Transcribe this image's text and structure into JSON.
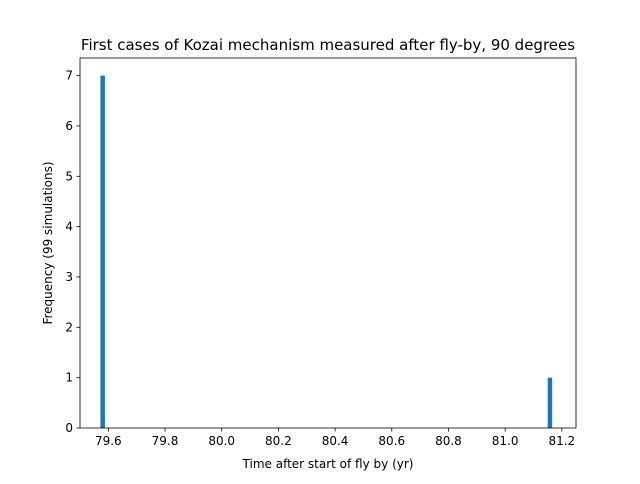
{
  "chart_data": {
    "type": "bar",
    "title": "First cases of Kozai mechanism measured after fly-by, 90 degrees",
    "xlabel": "Time after start of fly by (yr)",
    "ylabel": "Frequency (99 simulations)",
    "xlim": [
      79.5,
      81.25
    ],
    "ylim": [
      0,
      7.35
    ],
    "bin_width": 0.0158,
    "xticks": [
      79.6,
      79.8,
      80.0,
      80.2,
      80.4,
      80.6,
      80.8,
      81.0,
      81.2
    ],
    "xtick_labels": [
      "79.6",
      "79.8",
      "80.0",
      "80.2",
      "80.4",
      "80.6",
      "80.8",
      "81.0",
      "81.2"
    ],
    "yticks": [
      0,
      1,
      2,
      3,
      4,
      5,
      6,
      7
    ],
    "ytick_labels": [
      "0",
      "1",
      "2",
      "3",
      "4",
      "5",
      "6",
      "7"
    ],
    "bars": [
      {
        "x": 79.58,
        "value": 7
      },
      {
        "x": 81.158,
        "value": 1
      }
    ],
    "bar_color": "#1f77b4",
    "grid": false,
    "legend": "none"
  }
}
